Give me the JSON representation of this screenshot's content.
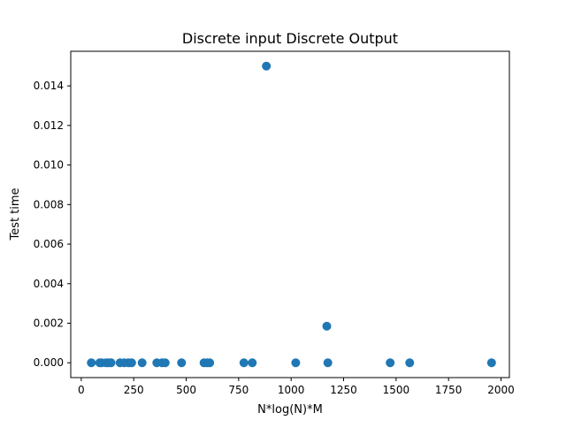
{
  "chart_data": {
    "type": "scatter",
    "title": "Discrete input Discrete Output",
    "xlabel": "N*log(N)*M",
    "ylabel": "Test time",
    "xlim": [
      -50,
      2040
    ],
    "ylim": [
      -0.00075,
      0.01575
    ],
    "xticks": [
      0,
      250,
      500,
      750,
      1000,
      1250,
      1500,
      1750,
      2000
    ],
    "xtick_labels": [
      "0",
      "250",
      "500",
      "750",
      "1000",
      "1250",
      "1500",
      "1750",
      "2000"
    ],
    "yticks": [
      0.0,
      0.002,
      0.004,
      0.006,
      0.008,
      0.01,
      0.012,
      0.014
    ],
    "ytick_labels": [
      "0.000",
      "0.002",
      "0.004",
      "0.006",
      "0.008",
      "0.010",
      "0.012",
      "0.014"
    ],
    "grid": false,
    "marker_color": "#1f77b4",
    "points": [
      {
        "x": 48,
        "y": 0.0
      },
      {
        "x": 88,
        "y": 0.0
      },
      {
        "x": 97,
        "y": 0.0
      },
      {
        "x": 118,
        "y": 0.0
      },
      {
        "x": 130,
        "y": 0.0
      },
      {
        "x": 142,
        "y": 0.0
      },
      {
        "x": 185,
        "y": 0.0
      },
      {
        "x": 205,
        "y": 0.0
      },
      {
        "x": 225,
        "y": 0.0
      },
      {
        "x": 240,
        "y": 0.0
      },
      {
        "x": 290,
        "y": 0.0
      },
      {
        "x": 360,
        "y": 0.0
      },
      {
        "x": 385,
        "y": 0.0
      },
      {
        "x": 400,
        "y": 0.0
      },
      {
        "x": 478,
        "y": 0.0
      },
      {
        "x": 585,
        "y": 0.0
      },
      {
        "x": 600,
        "y": 0.0
      },
      {
        "x": 612,
        "y": 0.0
      },
      {
        "x": 775,
        "y": 0.0
      },
      {
        "x": 815,
        "y": 0.0
      },
      {
        "x": 882,
        "y": 0.015
      },
      {
        "x": 1022,
        "y": 0.0
      },
      {
        "x": 1170,
        "y": 0.00185
      },
      {
        "x": 1175,
        "y": 0.0
      },
      {
        "x": 1472,
        "y": 0.0
      },
      {
        "x": 1565,
        "y": 0.0
      },
      {
        "x": 1955,
        "y": 0.0
      }
    ]
  }
}
